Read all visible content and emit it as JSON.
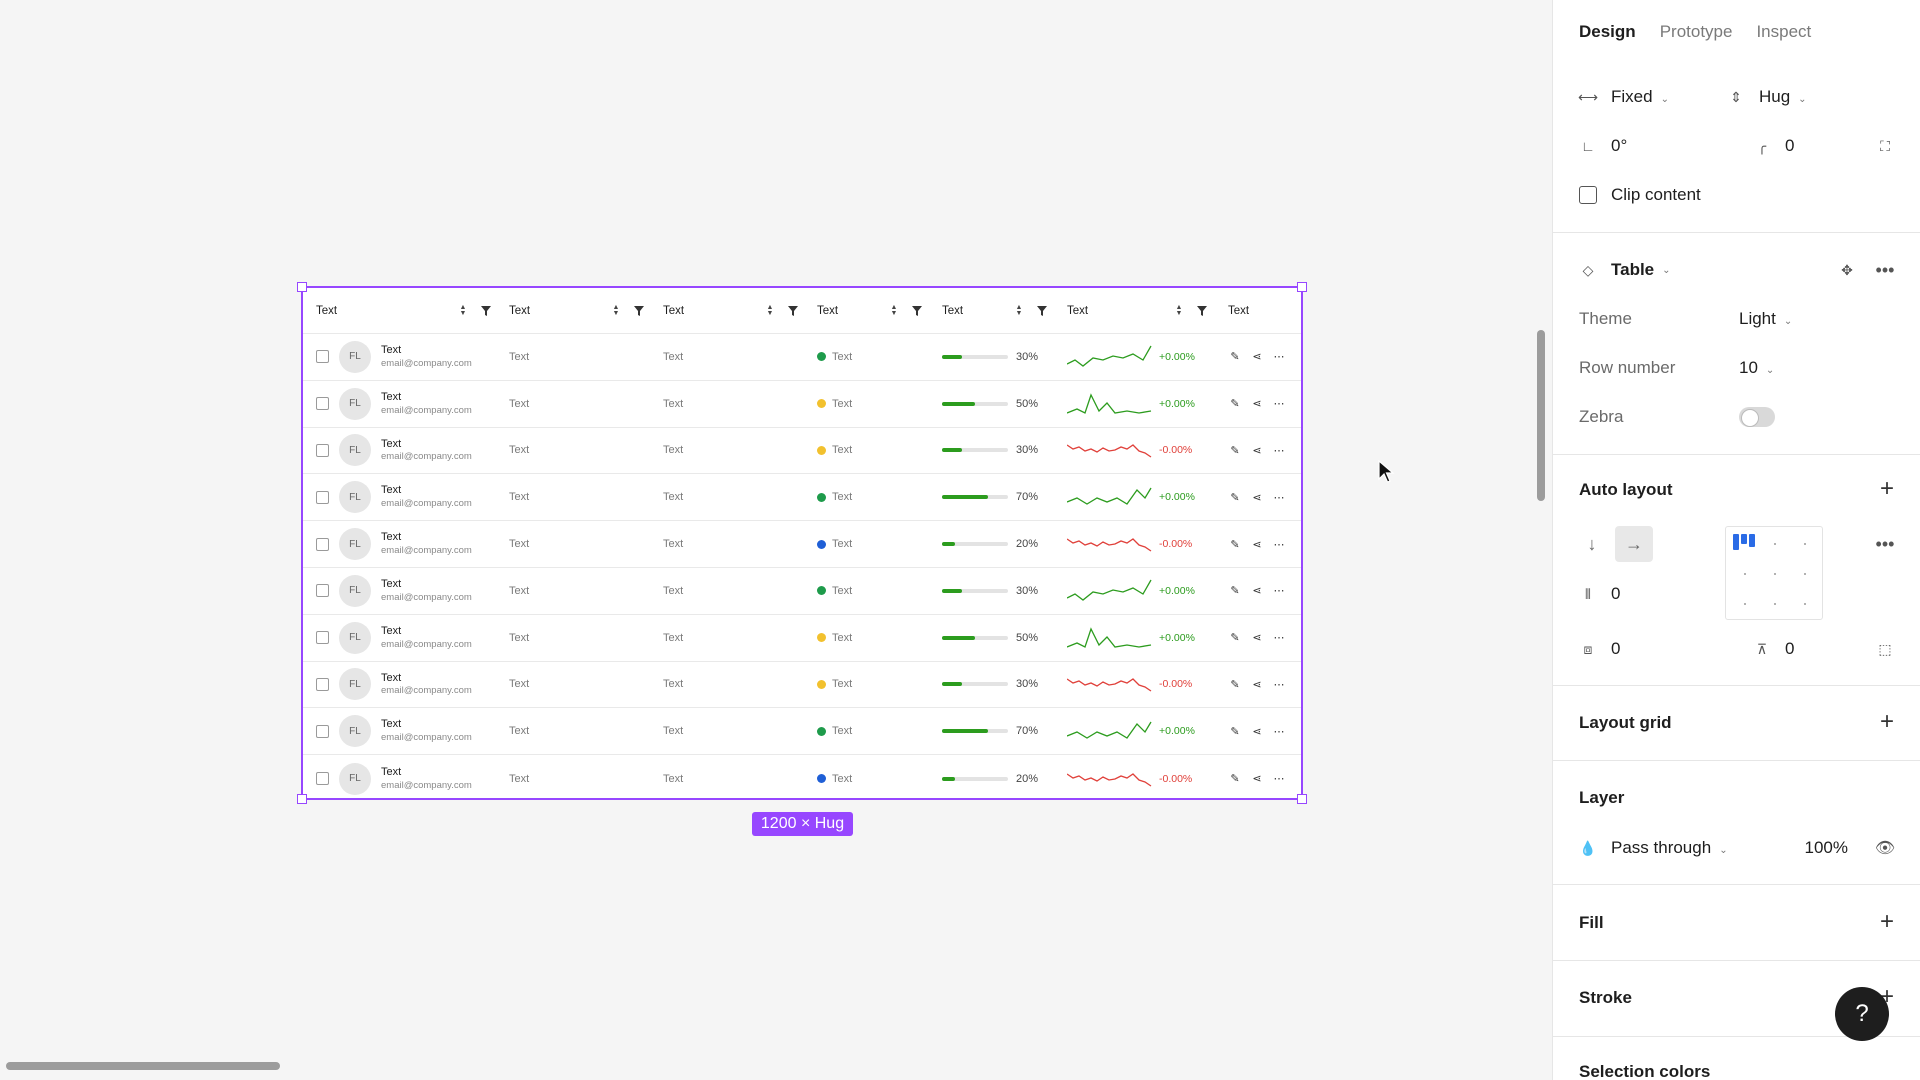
{
  "canvas": {
    "size_badge": "1200 × Hug",
    "table": {
      "headers": [
        "Text",
        "Text",
        "Text",
        "Text",
        "Text",
        "Text",
        "Text"
      ],
      "rows": [
        {
          "avatar": "FL",
          "name": "Text",
          "email": "email@company.com",
          "c2": "Text",
          "c3": "Text",
          "status_color": "#1e9b4b",
          "status": "Text",
          "progress": 0.3,
          "progress_label": "30%",
          "trend": "up",
          "delta": "+0.00%"
        },
        {
          "avatar": "FL",
          "name": "Text",
          "email": "email@company.com",
          "c2": "Text",
          "c3": "Text",
          "status_color": "#f2c12e",
          "status": "Text",
          "progress": 0.5,
          "progress_label": "50%",
          "trend": "spike",
          "delta": "+0.00%"
        },
        {
          "avatar": "FL",
          "name": "Text",
          "email": "email@company.com",
          "c2": "Text",
          "c3": "Text",
          "status_color": "#f2c12e",
          "status": "Text",
          "progress": 0.3,
          "progress_label": "30%",
          "trend": "down",
          "delta": "-0.00%"
        },
        {
          "avatar": "FL",
          "name": "Text",
          "email": "email@company.com",
          "c2": "Text",
          "c3": "Text",
          "status_color": "#1e9b4b",
          "status": "Text",
          "progress": 0.7,
          "progress_label": "70%",
          "trend": "up2",
          "delta": "+0.00%"
        },
        {
          "avatar": "FL",
          "name": "Text",
          "email": "email@company.com",
          "c2": "Text",
          "c3": "Text",
          "status_color": "#1f5fd6",
          "status": "Text",
          "progress": 0.2,
          "progress_label": "20%",
          "trend": "down",
          "delta": "-0.00%"
        },
        {
          "avatar": "FL",
          "name": "Text",
          "email": "email@company.com",
          "c2": "Text",
          "c3": "Text",
          "status_color": "#1e9b4b",
          "status": "Text",
          "progress": 0.3,
          "progress_label": "30%",
          "trend": "up",
          "delta": "+0.00%"
        },
        {
          "avatar": "FL",
          "name": "Text",
          "email": "email@company.com",
          "c2": "Text",
          "c3": "Text",
          "status_color": "#f2c12e",
          "status": "Text",
          "progress": 0.5,
          "progress_label": "50%",
          "trend": "spike",
          "delta": "+0.00%"
        },
        {
          "avatar": "FL",
          "name": "Text",
          "email": "email@company.com",
          "c2": "Text",
          "c3": "Text",
          "status_color": "#f2c12e",
          "status": "Text",
          "progress": 0.3,
          "progress_label": "30%",
          "trend": "down",
          "delta": "-0.00%"
        },
        {
          "avatar": "FL",
          "name": "Text",
          "email": "email@company.com",
          "c2": "Text",
          "c3": "Text",
          "status_color": "#1e9b4b",
          "status": "Text",
          "progress": 0.7,
          "progress_label": "70%",
          "trend": "up2",
          "delta": "+0.00%"
        },
        {
          "avatar": "FL",
          "name": "Text",
          "email": "email@company.com",
          "c2": "Text",
          "c3": "Text",
          "status_color": "#1f5fd6",
          "status": "Text",
          "progress": 0.2,
          "progress_label": "20%",
          "trend": "down",
          "delta": "-0.00%"
        }
      ]
    }
  },
  "panel": {
    "tabs": [
      "Design",
      "Prototype",
      "Inspect"
    ],
    "active_tab": "Design",
    "width_mode": "Fixed",
    "height_mode": "Hug",
    "rotation": "0°",
    "corner_radius": "0",
    "clip_content": "Clip content",
    "component": {
      "name": "Table",
      "theme_label": "Theme",
      "theme_value": "Light",
      "row_number_label": "Row number",
      "row_number_value": "10",
      "zebra_label": "Zebra",
      "zebra_on": false
    },
    "auto_layout": {
      "title": "Auto layout",
      "gap": "0",
      "padding_h": "0",
      "padding_v": "0"
    },
    "layout_grid": "Layout grid",
    "layer": {
      "title": "Layer",
      "blend": "Pass through",
      "opacity": "100%"
    },
    "fill": "Fill",
    "stroke": "Stroke",
    "selection_colors": "Selection colors",
    "help": "?"
  },
  "colors": {
    "accent": "#9747ff",
    "positive": "#2c9c1e",
    "negative": "#e0403a"
  }
}
